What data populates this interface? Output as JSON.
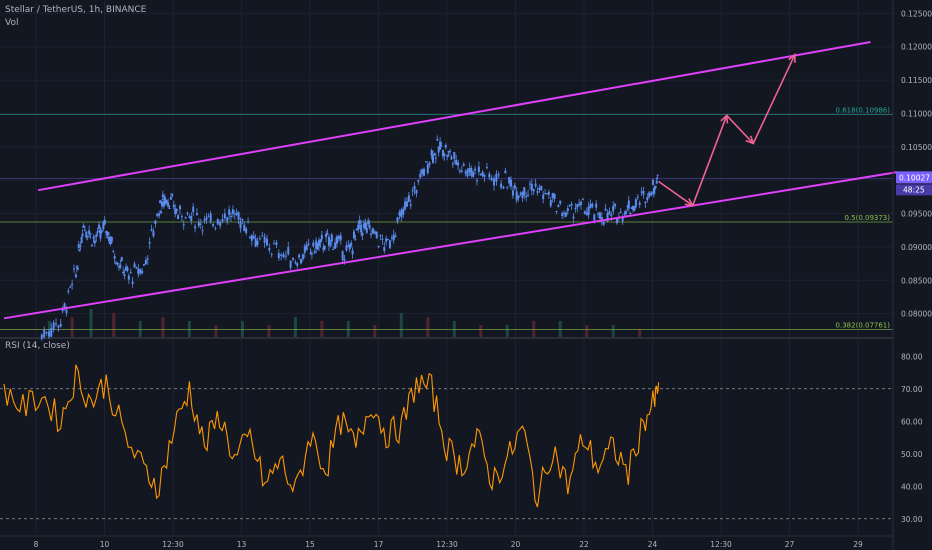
{
  "header": {
    "symbol_line": "Stellar / TetherUS, 1h, BINANCE",
    "volume_label": "Vol",
    "rsi_label": "RSI (14, close)"
  },
  "price_axis": {
    "ticks": [
      "0.12500",
      "0.12000",
      "0.11500",
      "0.11000",
      "0.10500",
      "0.10000",
      "0.09500",
      "0.09000",
      "0.08500",
      "0.08000"
    ],
    "current_price": "0.10027",
    "countdown": "48:25"
  },
  "rsi_axis": {
    "ticks": [
      "80.00",
      "70.00",
      "60.00",
      "50.00",
      "40.00",
      "30.00"
    ]
  },
  "time_axis": {
    "ticks": [
      "8",
      "10",
      "12:30",
      "13",
      "15",
      "17",
      "12:30",
      "20",
      "22",
      "24",
      "12:30",
      "27",
      "29"
    ]
  },
  "fib_levels": [
    {
      "label": "0.618(0.10986)",
      "price": 0.10986,
      "color": "#26a69a"
    },
    {
      "label": "0.5(0.09373)",
      "price": 0.09373,
      "color": "#8bc34a"
    },
    {
      "label": "0.382(0.07761)",
      "price": 0.07761,
      "color": "#8bc34a"
    }
  ],
  "colors": {
    "background": "#131722",
    "candles": "#5b8def",
    "channel": "#e040fb",
    "projection": "#f06292",
    "rsi_line": "#ff9800",
    "current_price_badge": "#7b61ff"
  },
  "chart_data": {
    "type": "line",
    "price_ylim": [
      0.0765,
      0.127
    ],
    "rsi_ylim": [
      25,
      85
    ],
    "rsi_bands": [
      70,
      30
    ],
    "last_price": 0.10027,
    "channel_upper": [
      [
        7.2,
        0.0985
      ],
      [
        29.2,
        0.1207
      ]
    ],
    "channel_lower": [
      [
        6.3,
        0.0793
      ],
      [
        29.9,
        0.1012
      ]
    ],
    "projection_path": [
      [
        23.6,
        0.0998
      ],
      [
        24.5,
        0.0962
      ],
      [
        25.4,
        0.1097
      ],
      [
        26.1,
        0.1055
      ],
      [
        27.2,
        0.1188
      ]
    ],
    "price_path": [
      [
        7.3,
        0.0768
      ],
      [
        7.8,
        0.079
      ],
      [
        8.2,
        0.086
      ],
      [
        8.4,
        0.0935
      ],
      [
        8.7,
        0.091
      ],
      [
        9.0,
        0.093
      ],
      [
        9.3,
        0.088
      ],
      [
        9.6,
        0.0855
      ],
      [
        10.0,
        0.087
      ],
      [
        10.4,
        0.096
      ],
      [
        10.6,
        0.0975
      ],
      [
        10.9,
        0.095
      ],
      [
        11.3,
        0.0945
      ],
      [
        11.7,
        0.0935
      ],
      [
        12.2,
        0.095
      ],
      [
        12.6,
        0.094
      ],
      [
        13.0,
        0.091
      ],
      [
        13.5,
        0.0895
      ],
      [
        14.0,
        0.088
      ],
      [
        14.4,
        0.0895
      ],
      [
        14.7,
        0.0905
      ],
      [
        15.0,
        0.091
      ],
      [
        15.4,
        0.089
      ],
      [
        15.7,
        0.093
      ],
      [
        16.0,
        0.0925
      ],
      [
        16.4,
        0.09
      ],
      [
        16.8,
        0.0945
      ],
      [
        17.2,
        0.099
      ],
      [
        17.6,
        0.104
      ],
      [
        17.9,
        0.105
      ],
      [
        18.2,
        0.103
      ],
      [
        18.6,
        0.1015
      ],
      [
        19.0,
        0.101
      ],
      [
        19.5,
        0.1
      ],
      [
        19.9,
        0.0985
      ],
      [
        20.3,
        0.099
      ],
      [
        20.7,
        0.0975
      ],
      [
        21.1,
        0.095
      ],
      [
        21.5,
        0.096
      ],
      [
        21.9,
        0.095
      ],
      [
        22.3,
        0.0945
      ],
      [
        22.7,
        0.0955
      ],
      [
        23.0,
        0.0965
      ],
      [
        23.4,
        0.0985
      ],
      [
        23.6,
        0.1003
      ]
    ],
    "volume_x": [
      7.5,
      8.1,
      8.6,
      9.2,
      9.9,
      10.5,
      11.2,
      11.9,
      12.6,
      13.3,
      14.0,
      14.7,
      15.4,
      16.1,
      16.8,
      17.5,
      18.2,
      18.9,
      19.6,
      20.3,
      21.0,
      21.7,
      22.4,
      23.1
    ],
    "volume_values": [
      4,
      5,
      7,
      6,
      4,
      5,
      4,
      3,
      4,
      3,
      5,
      4,
      4,
      3,
      6,
      5,
      4,
      3,
      3,
      4,
      4,
      3,
      3,
      2
    ],
    "rsi_x": [
      6.3,
      6.8,
      7.3,
      7.8,
      8.2,
      8.6,
      9.0,
      9.5,
      10.0,
      10.4,
      10.8,
      11.2,
      11.6,
      12.0,
      12.4,
      12.8,
      13.2,
      13.6,
      14.0,
      14.4,
      14.8,
      15.2,
      15.6,
      16.0,
      16.4,
      16.8,
      17.2,
      17.6,
      18.0,
      18.4,
      18.8,
      19.2,
      19.6,
      20.0,
      20.4,
      20.8,
      21.2,
      21.6,
      22.0,
      22.4,
      22.8,
      23.2,
      23.5,
      23.6
    ],
    "rsi_values": [
      70,
      64,
      68,
      60,
      74,
      66,
      72,
      55,
      45,
      40,
      58,
      70,
      52,
      62,
      48,
      55,
      40,
      48,
      38,
      56,
      45,
      60,
      52,
      66,
      56,
      58,
      72,
      70,
      52,
      46,
      55,
      42,
      48,
      58,
      36,
      52,
      40,
      55,
      46,
      52,
      44,
      60,
      66,
      72
    ]
  }
}
